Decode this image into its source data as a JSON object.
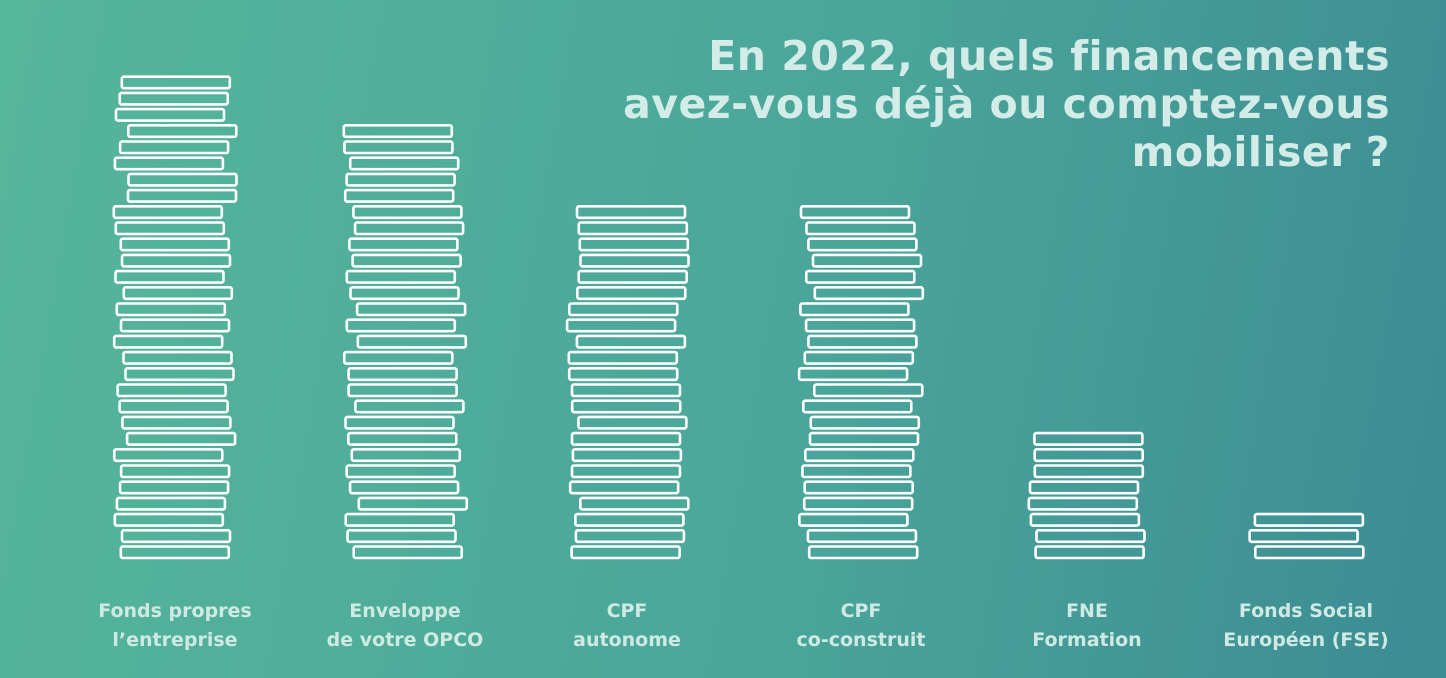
{
  "title_lines": [
    "En 2022, quels financements",
    "avez-vous déjà ou comptez-vous",
    "mobiliser ?"
  ],
  "colors": {
    "background_start": "#56b69a",
    "background_end": "#3c8c93",
    "stack_stroke": "#ffffff",
    "text": "#d3ece8"
  },
  "chart_data": {
    "type": "bar",
    "title": "En 2022, quels financements avez-vous déjà ou comptez-vous mobiliser ?",
    "encoding": "stacked outline rectangles (pictogram bars), one rectangle per unit",
    "categories": [
      [
        "Fonds propres",
        "l’entreprise"
      ],
      [
        "Enveloppe",
        "de votre OPCO"
      ],
      [
        "CPF",
        "autonome"
      ],
      [
        "CPF",
        "co-construit"
      ],
      [
        "FNE",
        "Formation"
      ],
      [
        "Fonds Social",
        "Européen (FSE)"
      ]
    ],
    "values": [
      30,
      27,
      22,
      22,
      8,
      3
    ],
    "grid": false,
    "legend": "none"
  }
}
